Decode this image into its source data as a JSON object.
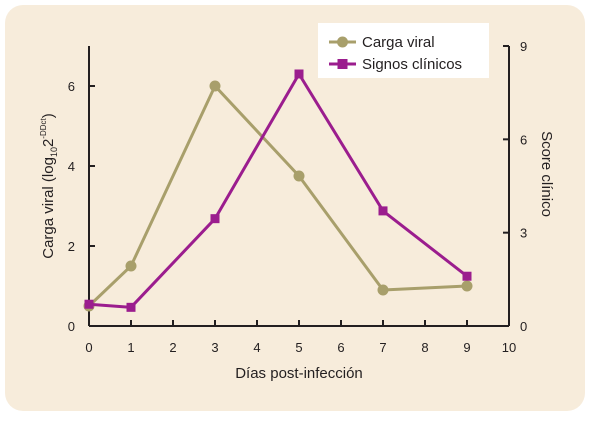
{
  "chart_data": {
    "type": "line",
    "xlabel": "Días post-infección",
    "ylabel_left_main": "Carga viral (log",
    "ylabel_left_sub": "10",
    "ylabel_left_mid": "2",
    "ylabel_left_sup": "-DDct",
    "ylabel_left_end": ")",
    "ylabel_right": "Score clínico",
    "x_ticks": [
      "0",
      "1",
      "2",
      "3",
      "4",
      "5",
      "6",
      "7",
      "8",
      "9",
      "10"
    ],
    "xlim": [
      0,
      10
    ],
    "y_left_ticks": [
      "0",
      "2",
      "4",
      "6"
    ],
    "y_left_lim": [
      0,
      7
    ],
    "y_right_ticks": [
      "0",
      "3",
      "6",
      "9"
    ],
    "y_right_lim": [
      0,
      9
    ],
    "grid": false,
    "legend_position": "top-right",
    "series": [
      {
        "name": "Carga viral",
        "axis": "left",
        "marker": "circle",
        "color": "#a89f6b",
        "x": [
          0,
          1,
          3,
          5,
          7,
          9
        ],
        "y": [
          0.5,
          1.5,
          6.0,
          3.75,
          0.9,
          1.0
        ]
      },
      {
        "name": "Signos clínicos",
        "axis": "right",
        "marker": "square",
        "color": "#9b1d8e",
        "x": [
          0,
          1,
          3,
          5,
          7,
          9
        ],
        "y": [
          0.7,
          0.6,
          3.45,
          8.1,
          3.7,
          1.6
        ]
      }
    ]
  },
  "colors": {
    "background": "#f7ecdb",
    "axis": "#231f20"
  }
}
